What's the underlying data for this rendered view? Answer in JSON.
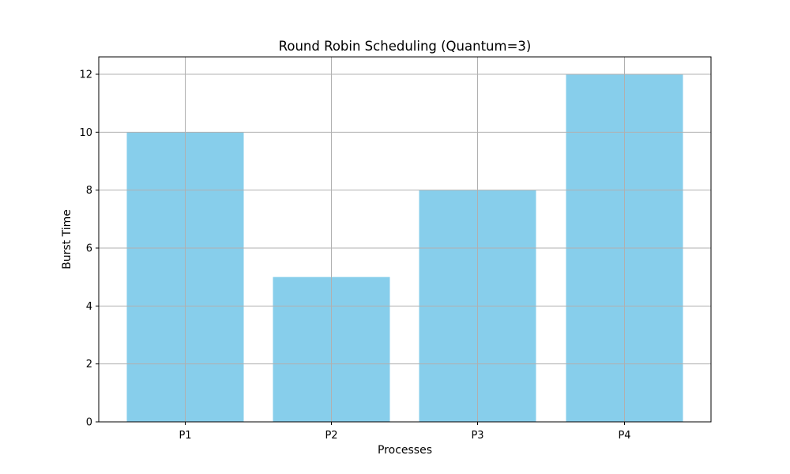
{
  "chart_data": {
    "type": "bar",
    "title": "Round Robin Scheduling (Quantum=3)",
    "xlabel": "Processes",
    "ylabel": "Burst Time",
    "categories": [
      "P1",
      "P2",
      "P3",
      "P4"
    ],
    "values": [
      10,
      5,
      8,
      12
    ],
    "ylim": [
      0,
      12.6
    ],
    "yticks": [
      0,
      2,
      4,
      6,
      8,
      10,
      12
    ],
    "grid": true,
    "bar_color": "#87CEEB",
    "grid_color": "#b0b0b0"
  }
}
